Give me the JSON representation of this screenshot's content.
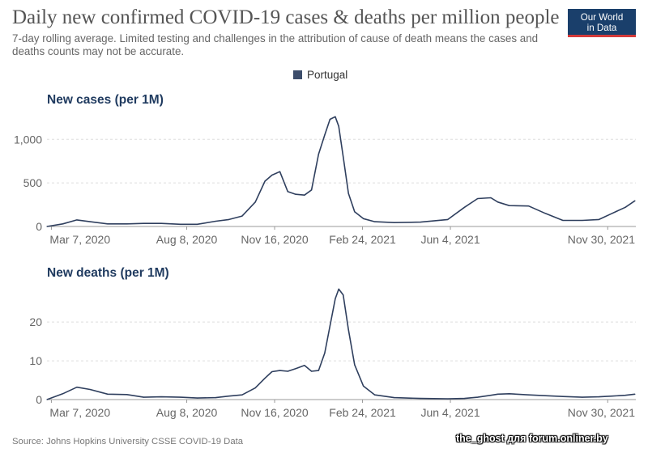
{
  "title": "Daily new confirmed COVID-19 cases & deaths per million people",
  "subtitle": "7-day rolling average. Limited testing and challenges in the attribution of cause of death means the cases and deaths counts may not be accurate.",
  "logo": {
    "line1": "Our World",
    "line2": "in Data"
  },
  "legend": {
    "label": "Portugal",
    "color": "#3c4d6b"
  },
  "source": "Source: Johns Hopkins University CSSE COVID-19 Data",
  "watermark": "the_ghost для forum.onliner.by",
  "colors": {
    "line": "#2f3f5e",
    "grid": "#dddddd",
    "axis": "#999999"
  },
  "chart_data": [
    {
      "type": "line",
      "title": "New cases (per 1M)",
      "series_name": "Portugal",
      "x_range": [
        "2020-03-02",
        "2022-01-01"
      ],
      "xticks": [
        "Mar 7, 2020",
        "Aug 8, 2020",
        "Nov 16, 2020",
        "Feb 24, 2021",
        "Jun 4, 2021",
        "Nov 30, 2021"
      ],
      "yticks": [
        0,
        500,
        1000
      ],
      "ytick_labels": [
        "0",
        "500",
        "1,000"
      ],
      "ylim": [
        0,
        1300
      ],
      "x": [
        "2020-03-02",
        "2020-03-20",
        "2020-04-05",
        "2020-04-20",
        "2020-05-10",
        "2020-06-01",
        "2020-06-20",
        "2020-07-10",
        "2020-08-01",
        "2020-08-20",
        "2020-09-10",
        "2020-09-25",
        "2020-10-10",
        "2020-10-25",
        "2020-11-05",
        "2020-11-13",
        "2020-11-22",
        "2020-12-01",
        "2020-12-10",
        "2020-12-20",
        "2020-12-28",
        "2021-01-05",
        "2021-01-12",
        "2021-01-18",
        "2021-01-24",
        "2021-01-28",
        "2021-02-02",
        "2021-02-08",
        "2021-02-15",
        "2021-02-25",
        "2021-03-10",
        "2021-04-01",
        "2021-05-01",
        "2021-06-01",
        "2021-06-20",
        "2021-07-05",
        "2021-07-20",
        "2021-07-28",
        "2021-08-10",
        "2021-09-01",
        "2021-09-20",
        "2021-10-10",
        "2021-11-01",
        "2021-11-20",
        "2021-12-05",
        "2021-12-20",
        "2021-12-31"
      ],
      "values": [
        0,
        30,
        75,
        55,
        30,
        30,
        35,
        35,
        25,
        25,
        60,
        80,
        120,
        280,
        520,
        590,
        630,
        400,
        370,
        360,
        420,
        830,
        1050,
        1230,
        1260,
        1150,
        800,
        380,
        170,
        90,
        55,
        45,
        50,
        80,
        220,
        320,
        330,
        280,
        240,
        235,
        150,
        70,
        70,
        80,
        150,
        220,
        295
      ]
    },
    {
      "type": "line",
      "title": "New deaths (per 1M)",
      "series_name": "Portugal",
      "x_range": [
        "2020-03-02",
        "2022-01-01"
      ],
      "xticks": [
        "Mar 7, 2020",
        "Aug 8, 2020",
        "Nov 16, 2020",
        "Feb 24, 2021",
        "Jun 4, 2021",
        "Nov 30, 2021"
      ],
      "yticks": [
        0,
        10,
        20
      ],
      "ytick_labels": [
        "0",
        "10",
        "20"
      ],
      "ylim": [
        0,
        29
      ],
      "x": [
        "2020-03-02",
        "2020-03-20",
        "2020-04-05",
        "2020-04-20",
        "2020-05-10",
        "2020-06-01",
        "2020-06-20",
        "2020-07-10",
        "2020-08-01",
        "2020-08-20",
        "2020-09-10",
        "2020-09-25",
        "2020-10-10",
        "2020-10-25",
        "2020-11-05",
        "2020-11-13",
        "2020-11-22",
        "2020-12-01",
        "2020-12-10",
        "2020-12-20",
        "2020-12-28",
        "2021-01-05",
        "2021-01-12",
        "2021-01-18",
        "2021-01-24",
        "2021-01-28",
        "2021-02-02",
        "2021-02-08",
        "2021-02-15",
        "2021-02-25",
        "2021-03-10",
        "2021-04-01",
        "2021-05-01",
        "2021-06-01",
        "2021-06-20",
        "2021-07-05",
        "2021-07-20",
        "2021-07-28",
        "2021-08-10",
        "2021-09-01",
        "2021-09-20",
        "2021-10-10",
        "2021-11-01",
        "2021-11-20",
        "2021-12-05",
        "2021-12-20",
        "2021-12-31"
      ],
      "values": [
        0,
        1.5,
        3.2,
        2.6,
        1.4,
        1.3,
        0.6,
        0.7,
        0.6,
        0.4,
        0.5,
        0.9,
        1.2,
        3.0,
        5.5,
        7.2,
        7.5,
        7.3,
        8.0,
        8.8,
        7.3,
        7.5,
        12,
        19,
        26,
        28.5,
        27,
        18,
        9,
        3.5,
        1.2,
        0.5,
        0.3,
        0.2,
        0.3,
        0.6,
        1.1,
        1.4,
        1.5,
        1.2,
        1.0,
        0.8,
        0.6,
        0.7,
        0.9,
        1.1,
        1.4
      ]
    }
  ]
}
